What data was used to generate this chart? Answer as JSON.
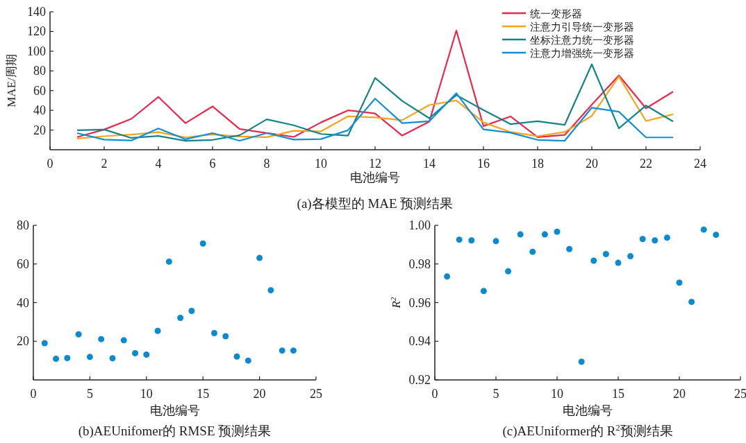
{
  "chart_data": [
    {
      "type": "line",
      "title": "(a)各模型的 MAE 预测结果",
      "xlabel": "电池编号",
      "ylabel": "MAE/周期",
      "x": [
        1,
        2,
        3,
        4,
        5,
        6,
        7,
        8,
        9,
        10,
        11,
        12,
        13,
        14,
        15,
        16,
        17,
        18,
        19,
        20,
        21,
        22,
        23
      ],
      "xlim": [
        0,
        24
      ],
      "xticks": [
        0,
        2,
        4,
        6,
        8,
        10,
        12,
        14,
        16,
        18,
        20,
        22,
        24
      ],
      "ylim": [
        0,
        140
      ],
      "yticks": [
        20,
        40,
        60,
        80,
        100,
        120,
        140
      ],
      "legend": "top right",
      "marker": "none",
      "line_style": "solid",
      "series": [
        {
          "name": "统一变形器",
          "color": "#e8284a",
          "values": [
            12.8,
            20.5,
            31.3,
            53.6,
            27,
            44,
            21,
            17,
            13,
            27.7,
            40,
            36.9,
            14.4,
            28.5,
            121,
            24,
            33.8,
            12.8,
            15,
            45.8,
            75.5,
            42,
            58.9
          ]
        },
        {
          "name": "注意力引导统一变形器",
          "color": "#f5a31a",
          "values": [
            11.3,
            13.7,
            15.4,
            17.8,
            12.5,
            15.6,
            13.5,
            12.8,
            19.3,
            18.6,
            34,
            32.8,
            30,
            45.4,
            50,
            27.7,
            18,
            13.7,
            18,
            34.3,
            74.3,
            29.2,
            36
          ]
        },
        {
          "name": "坐标注意力统一变形器",
          "color": "#118489",
          "values": [
            19.8,
            20.5,
            12,
            14,
            9,
            10,
            14.7,
            30.9,
            24.8,
            16,
            14.4,
            72.9,
            49.5,
            32,
            55.5,
            40.3,
            26,
            28.9,
            25.3,
            86.7,
            21.7,
            44.9,
            28.7
          ]
        },
        {
          "name": "注意力增强统一变形器",
          "color": "#0f8fd8",
          "values": [
            16.9,
            10.3,
            9.4,
            21.7,
            10.6,
            16.9,
            9.1,
            16.9,
            10.3,
            10.8,
            19.8,
            51.9,
            27,
            28.9,
            57.4,
            20.7,
            17.3,
            10,
            9.1,
            42.7,
            38.6,
            12.5,
            12.5
          ]
        }
      ]
    },
    {
      "type": "scatter",
      "title": "(b)AEUnifomer的 RMSE 预测结果",
      "xlabel": "电池编号",
      "x": [
        1,
        2,
        3,
        4,
        5,
        6,
        7,
        8,
        9,
        10,
        11,
        12,
        13,
        14,
        15,
        16,
        17,
        18,
        19,
        20,
        21,
        22,
        23
      ],
      "xlim": [
        0,
        25
      ],
      "xticks": [
        0,
        5,
        10,
        15,
        20,
        25
      ],
      "ylim": [
        0,
        80
      ],
      "yticks": [
        20,
        40,
        60,
        80
      ],
      "marker": "circle",
      "series": [
        {
          "color": "#0a8ad0",
          "values": [
            19.0,
            10.9,
            11.3,
            23.6,
            11.9,
            21.1,
            11.2,
            20.5,
            13.8,
            13.1,
            25.4,
            61.2,
            32.1,
            35.7,
            70.6,
            24.2,
            22.6,
            12.1,
            10.0,
            63.1,
            46.4,
            15.2,
            15.2
          ]
        }
      ]
    },
    {
      "type": "scatter",
      "title": "(c)AEUniformer的 R$^{2}$预测结果",
      "xlabel": "电池编号",
      "ylabel": "R$^{2}$",
      "x": [
        1,
        2,
        3,
        4,
        5,
        6,
        7,
        8,
        9,
        10,
        11,
        12,
        13,
        14,
        15,
        16,
        17,
        18,
        19,
        20,
        21,
        22,
        23
      ],
      "xlim": [
        0,
        25
      ],
      "xticks": [
        0,
        5,
        10,
        15,
        20,
        25
      ],
      "ylim": [
        0.92,
        1.0
      ],
      "yticks": [
        {
          "value": 0.92,
          "label": "0.92"
        },
        {
          "value": 0.94,
          "label": "0.94"
        },
        {
          "value": 0.96,
          "label": "0.96"
        },
        {
          "value": 0.98,
          "label": "0.98"
        },
        {
          "value": 1.0,
          "label": "1.00"
        }
      ],
      "marker": "circle",
      "series": [
        {
          "color": "#0a8ad0",
          "values": [
            0.9735,
            0.9926,
            0.9922,
            0.966,
            0.9918,
            0.9762,
            0.9953,
            0.9863,
            0.9953,
            0.9967,
            0.9877,
            0.9294,
            0.9817,
            0.9851,
            0.9806,
            0.984,
            0.9929,
            0.9922,
            0.9936,
            0.9703,
            0.9604,
            0.9978,
            0.9951
          ]
        }
      ]
    }
  ]
}
